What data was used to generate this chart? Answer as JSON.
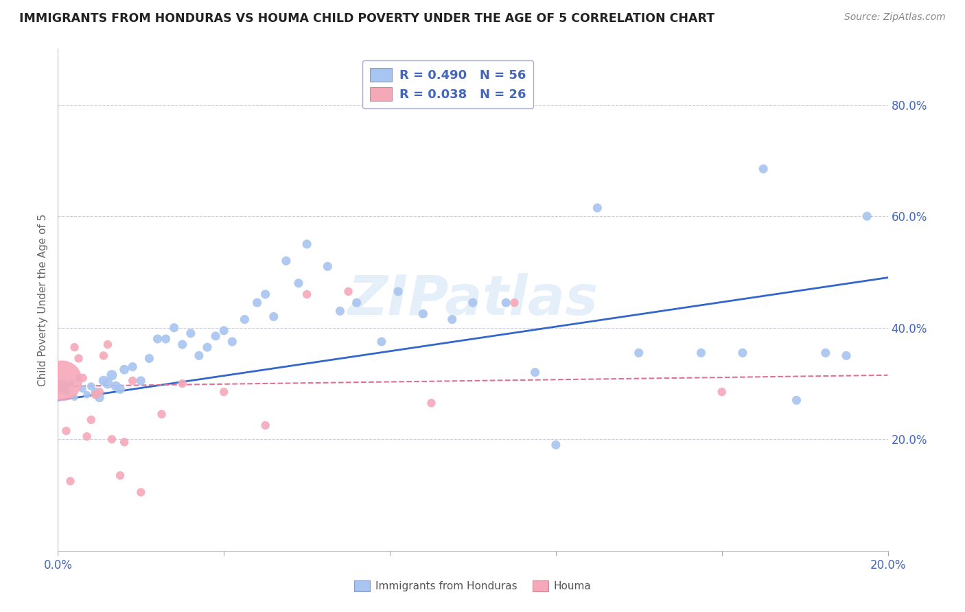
{
  "title": "IMMIGRANTS FROM HONDURAS VS HOUMA CHILD POVERTY UNDER THE AGE OF 5 CORRELATION CHART",
  "source": "Source: ZipAtlas.com",
  "ylabel": "Child Poverty Under the Age of 5",
  "xlim": [
    0.0,
    0.2
  ],
  "ylim": [
    0.0,
    0.9
  ],
  "ytick_labels": [
    "",
    "20.0%",
    "40.0%",
    "60.0%",
    "80.0%"
  ],
  "ytick_values": [
    0.0,
    0.2,
    0.4,
    0.6,
    0.8
  ],
  "xtick_labels": [
    "0.0%",
    "",
    "",
    "",
    "",
    "20.0%"
  ],
  "xtick_values": [
    0.0,
    0.04,
    0.08,
    0.12,
    0.16,
    0.2
  ],
  "legend_label_blue": "Immigrants from Honduras",
  "legend_label_pink": "Houma",
  "R_blue": 0.49,
  "N_blue": 56,
  "R_pink": 0.038,
  "N_pink": 26,
  "blue_color": "#a8c4f0",
  "pink_color": "#f5a8b8",
  "line_blue": "#3366cc",
  "line_pink": "#e07090",
  "axis_color": "#4466bb",
  "grid_color": "#ccccdd",
  "watermark": "ZIPatlas",
  "blue_scatter_x": [
    0.001,
    0.002,
    0.003,
    0.004,
    0.005,
    0.006,
    0.007,
    0.008,
    0.009,
    0.01,
    0.011,
    0.012,
    0.013,
    0.014,
    0.015,
    0.016,
    0.018,
    0.02,
    0.022,
    0.024,
    0.026,
    0.028,
    0.03,
    0.032,
    0.034,
    0.036,
    0.038,
    0.04,
    0.042,
    0.045,
    0.048,
    0.05,
    0.052,
    0.055,
    0.058,
    0.06,
    0.065,
    0.068,
    0.072,
    0.078,
    0.082,
    0.088,
    0.095,
    0.1,
    0.108,
    0.115,
    0.12,
    0.13,
    0.14,
    0.155,
    0.165,
    0.17,
    0.178,
    0.185,
    0.19,
    0.195
  ],
  "blue_scatter_y": [
    0.295,
    0.285,
    0.3,
    0.275,
    0.31,
    0.29,
    0.28,
    0.295,
    0.285,
    0.275,
    0.305,
    0.3,
    0.315,
    0.295,
    0.29,
    0.325,
    0.33,
    0.305,
    0.345,
    0.38,
    0.38,
    0.4,
    0.37,
    0.39,
    0.35,
    0.365,
    0.385,
    0.395,
    0.375,
    0.415,
    0.445,
    0.46,
    0.42,
    0.52,
    0.48,
    0.55,
    0.51,
    0.43,
    0.445,
    0.375,
    0.465,
    0.425,
    0.415,
    0.445,
    0.445,
    0.32,
    0.19,
    0.615,
    0.355,
    0.355,
    0.355,
    0.685,
    0.27,
    0.355,
    0.35,
    0.6
  ],
  "blue_scatter_sizes": [
    200,
    60,
    50,
    50,
    50,
    60,
    60,
    70,
    80,
    100,
    110,
    120,
    120,
    110,
    100,
    100,
    90,
    90,
    90,
    90,
    90,
    90,
    90,
    90,
    90,
    90,
    90,
    90,
    90,
    90,
    90,
    90,
    90,
    90,
    90,
    90,
    90,
    90,
    90,
    90,
    90,
    90,
    90,
    90,
    90,
    90,
    90,
    90,
    90,
    90,
    90,
    90,
    90,
    90,
    90,
    90
  ],
  "pink_scatter_x": [
    0.001,
    0.002,
    0.003,
    0.004,
    0.005,
    0.006,
    0.007,
    0.008,
    0.009,
    0.01,
    0.011,
    0.012,
    0.013,
    0.015,
    0.016,
    0.018,
    0.02,
    0.025,
    0.03,
    0.04,
    0.05,
    0.06,
    0.07,
    0.09,
    0.11,
    0.16
  ],
  "pink_scatter_y": [
    0.305,
    0.215,
    0.125,
    0.365,
    0.345,
    0.31,
    0.205,
    0.235,
    0.28,
    0.285,
    0.35,
    0.37,
    0.2,
    0.135,
    0.195,
    0.305,
    0.105,
    0.245,
    0.3,
    0.285,
    0.225,
    0.46,
    0.465,
    0.265,
    0.445,
    0.285
  ],
  "pink_scatter_sizes": [
    1800,
    80,
    80,
    80,
    80,
    80,
    80,
    80,
    80,
    80,
    80,
    80,
    80,
    80,
    80,
    80,
    80,
    80,
    80,
    80,
    80,
    80,
    80,
    80,
    80,
    80
  ],
  "blue_line_x": [
    0.0,
    0.2
  ],
  "blue_line_y": [
    0.27,
    0.49
  ],
  "pink_line_x": [
    0.0,
    0.2
  ],
  "pink_line_y": [
    0.295,
    0.315
  ]
}
